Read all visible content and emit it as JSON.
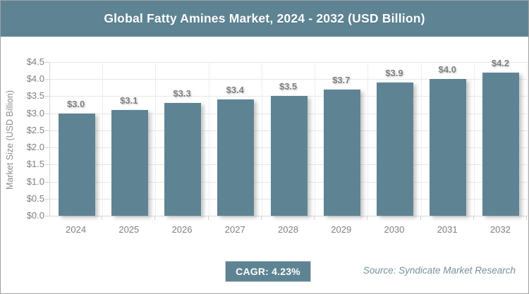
{
  "title_bar": {
    "title": "Global Fatty Amines Market, 2024 - 2032 (USD Billion)"
  },
  "chart_data": {
    "type": "bar",
    "title": "Global Fatty Amines Market, 2024 - 2032 (USD Billion)",
    "categories": [
      "2024",
      "2025",
      "2026",
      "2027",
      "2028",
      "2029",
      "2030",
      "2031",
      "2032"
    ],
    "values": [
      3.0,
      3.1,
      3.3,
      3.4,
      3.5,
      3.7,
      3.9,
      4.0,
      4.2
    ],
    "bar_labels": [
      "$3.0",
      "$3.1",
      "$3.3",
      "$3.4",
      "$3.5",
      "$3.7",
      "$3.9",
      "$4.0",
      "$4.2"
    ],
    "xlabel": "",
    "ylabel": "Market Size (USD Billion)",
    "ylim": [
      0,
      4.5
    ],
    "ytick_step": 0.5,
    "ytick_labels": [
      "$0.0",
      "$0.5",
      "$1.0",
      "$1.5",
      "$2.0",
      "$2.5",
      "$3.0",
      "$3.5",
      "$4.0",
      "$4.5"
    ],
    "grid": true,
    "legend_position": "none"
  },
  "footer": {
    "cagr_badge": "CAGR: 4.23%",
    "source": "Source: Syndicate Market Research"
  },
  "colors": {
    "accent_slate": "#5e8494",
    "grid_line": "#e6e6e6",
    "axis_line": "#d6d6d6",
    "tick_text": "#808080",
    "value_text": "#7f7f7f",
    "source_text": "#76909d",
    "title_text": "#ffffff",
    "frame_border": "#a0a0a0"
  }
}
